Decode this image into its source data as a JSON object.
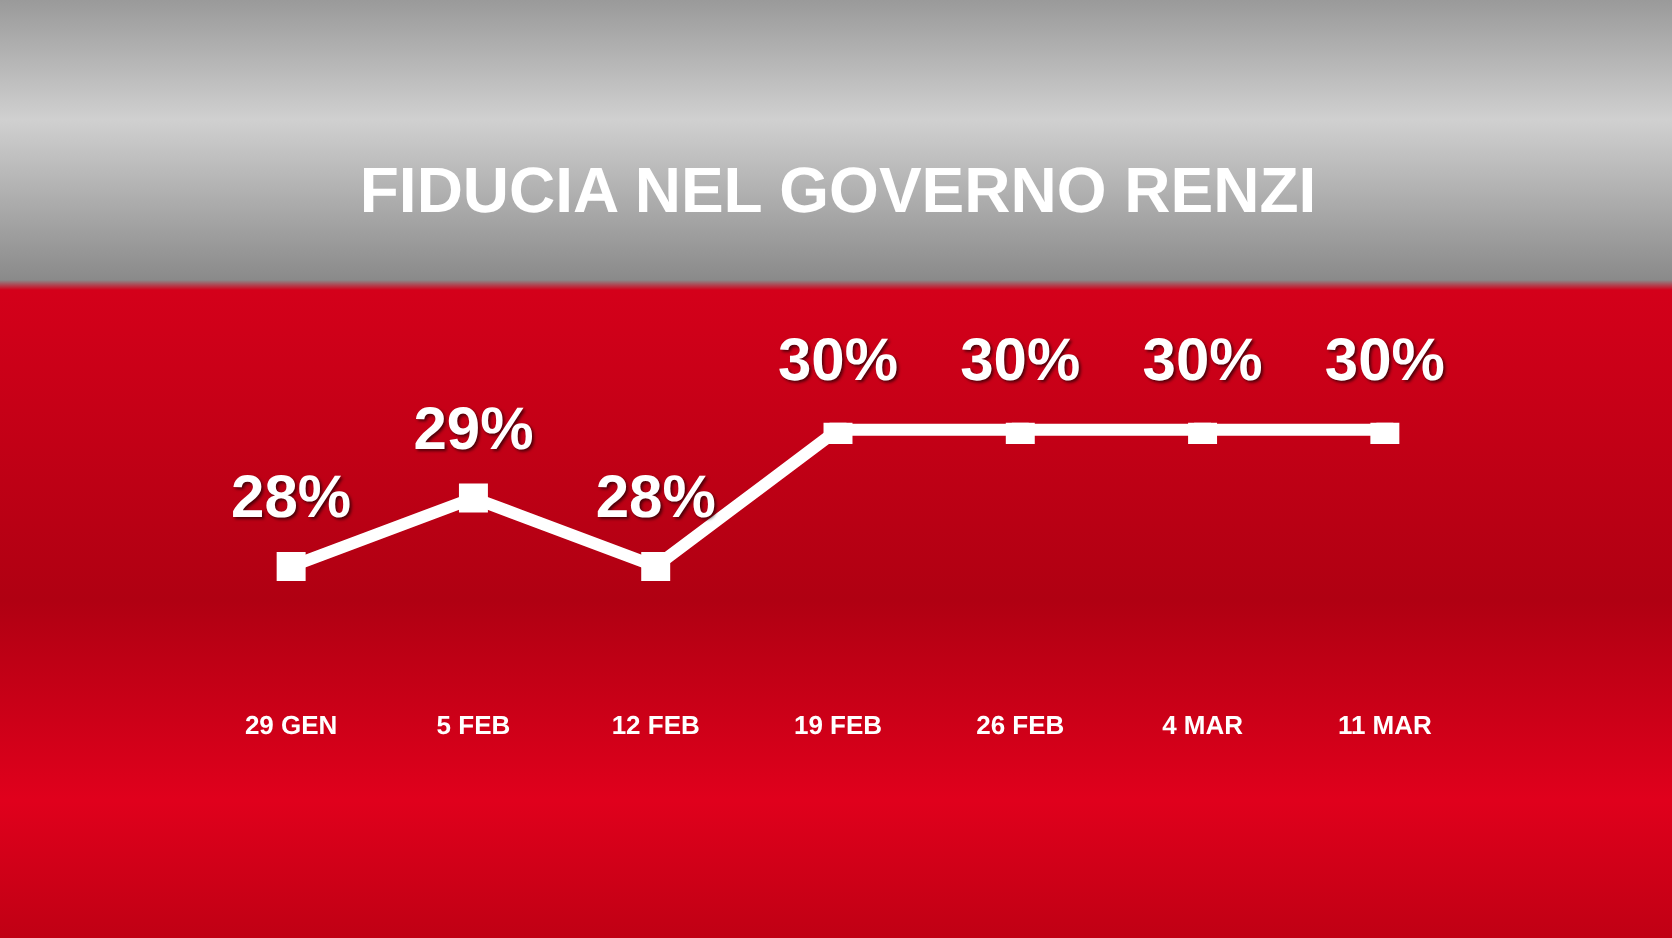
{
  "chart_data": {
    "type": "line",
    "title": "FIDUCIA NEL GOVERNO RENZI",
    "categories": [
      "29 GEN",
      "5 FEB",
      "12 FEB",
      "19 FEB",
      "26 FEB",
      "4 MAR",
      "11 MAR"
    ],
    "series": [
      {
        "color": "#ffffff",
        "values": [
          28,
          29,
          28,
          30,
          30,
          30,
          30
        ],
        "value_labels": [
          "28%",
          "29%",
          "28%",
          "30%",
          "30%",
          "30%",
          "30%"
        ]
      }
    ],
    "marker": "square",
    "grid": false,
    "legend": false
  }
}
